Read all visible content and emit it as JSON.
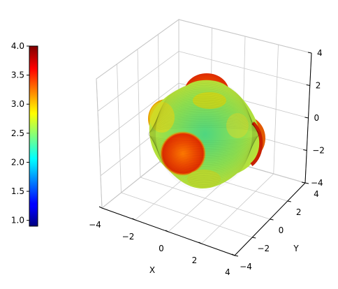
{
  "chart_data": {
    "type": "surface3d",
    "title": "",
    "xlabel": "X",
    "ylabel": "Y",
    "zlabel": "",
    "xlim": [
      -4,
      4
    ],
    "ylim": [
      -4,
      4
    ],
    "zlim": [
      -4,
      4
    ],
    "xticks": [
      -4,
      -2,
      0,
      2,
      4
    ],
    "yticks": [
      -4,
      -2,
      0,
      2,
      4
    ],
    "zticks": [
      -4,
      -2,
      0,
      2,
      4
    ],
    "xtick_labels": [
      "−4",
      "−2",
      "0",
      "2",
      "4"
    ],
    "ytick_labels": [
      "−4",
      "−2",
      "0",
      "2",
      "4"
    ],
    "ztick_labels": [
      "−4",
      "−2",
      "0",
      "2",
      "4"
    ],
    "grid": true,
    "colormap": "jet",
    "colorbar": {
      "min": 0.9,
      "max": 4.0,
      "ticks": [
        1.0,
        1.5,
        2.0,
        2.5,
        3.0,
        3.5,
        4.0
      ],
      "tick_labels": [
        "1.0",
        "1.5",
        "2.0",
        "2.5",
        "3.0",
        "3.5",
        "4.0"
      ],
      "placement": "left"
    },
    "surface": {
      "shape": "lobed sphere with six lobes along the axes",
      "radius_min": 2.0,
      "radius_max": 4.0
    }
  }
}
